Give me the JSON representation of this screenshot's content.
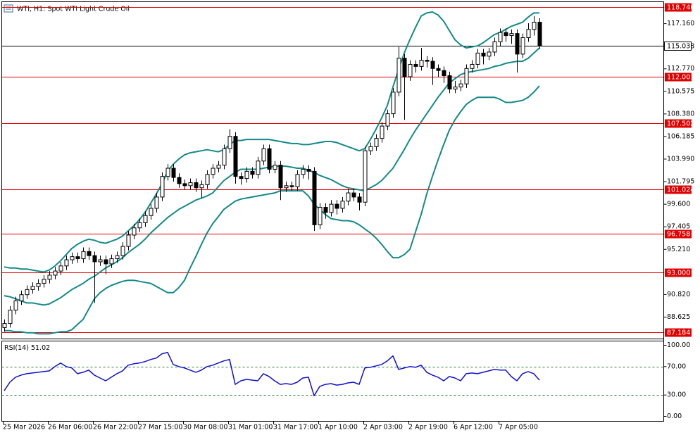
{
  "chart_data": [
    {
      "type": "candlestick",
      "title": "WTI, H1:  Spot WTI Light Crude Oil",
      "categories": [
        "25 Mar 2026",
        null,
        null,
        null,
        null,
        null,
        null,
        null,
        "26 Mar 06:00",
        null,
        null,
        null,
        null,
        null,
        null,
        null,
        "26 Mar 22:00",
        null,
        null,
        null,
        null,
        null,
        null,
        null,
        "27 Mar 15:00",
        null,
        null,
        null,
        null,
        null,
        null,
        null,
        "30 Mar 08:00",
        null,
        null,
        null,
        null,
        null,
        null,
        null,
        "31 Mar 01:00",
        null,
        null,
        null,
        null,
        null,
        null,
        null,
        "31 Mar 17:00",
        null,
        null,
        null,
        null,
        null,
        null,
        null,
        "1 Apr 10:00",
        null,
        null,
        null,
        null,
        null,
        null,
        null,
        "2 Apr 03:00",
        null,
        null,
        null,
        null,
        null,
        null,
        null,
        "2 Apr 19:00",
        null,
        null,
        null,
        null,
        null,
        null,
        null,
        "6 Apr 12:00",
        null,
        null,
        null,
        null,
        null,
        null,
        null,
        "7 Apr 05:00",
        null,
        null,
        null,
        null,
        null,
        null,
        null
      ],
      "open": [
        87.6,
        88.0,
        89.3,
        90.2,
        90.8,
        91.3,
        91.6,
        91.9,
        92.3,
        92.7,
        93.1,
        93.6,
        94.2,
        94.5,
        94.3,
        95.0,
        94.6,
        94.0,
        94.2,
        93.8,
        94.3,
        94.6,
        95.5,
        96.6,
        97.3,
        97.8,
        98.5,
        99.2,
        100.3,
        102.3,
        103.1,
        102.2,
        101.6,
        101.4,
        101.7,
        101.2,
        101.5,
        102.5,
        103.1,
        103.4,
        105.0,
        106.2,
        102.3,
        102.1,
        102.8,
        102.5,
        103.8,
        105.0,
        103.0,
        103.4,
        101.2,
        101.4,
        101.3,
        102.5,
        103.0,
        102.8,
        97.6,
        99.3,
        98.8,
        99.6,
        99.2,
        99.9,
        100.7,
        100.3,
        99.8,
        104.8,
        105.2,
        106.0,
        107.2,
        108.4,
        110.5,
        113.8,
        112.0,
        113.2,
        113.0,
        113.6,
        113.5,
        112.8,
        112.6,
        112.1,
        110.8,
        111.0,
        111.3,
        112.8,
        113.2,
        114.3,
        114.0,
        114.4,
        115.4,
        116.3,
        116.0,
        116.2,
        114.2,
        115.8,
        116.6,
        117.3
      ],
      "high": [
        88.4,
        89.7,
        90.6,
        91.2,
        91.7,
        92.0,
        92.3,
        92.7,
        93.1,
        93.5,
        94.0,
        94.6,
        94.9,
        94.9,
        95.4,
        95.4,
        95.0,
        94.6,
        94.6,
        94.7,
        95.0,
        95.9,
        97.0,
        97.7,
        98.2,
        98.9,
        99.6,
        100.7,
        102.7,
        103.5,
        103.5,
        102.6,
        102.0,
        102.1,
        102.1,
        101.9,
        102.9,
        103.5,
        103.8,
        105.4,
        106.9,
        106.6,
        102.7,
        103.2,
        103.2,
        104.2,
        105.4,
        105.4,
        103.8,
        103.8,
        101.8,
        101.8,
        102.9,
        103.4,
        103.4,
        103.2,
        99.7,
        99.7,
        100.0,
        100.0,
        100.3,
        101.1,
        101.1,
        100.7,
        105.2,
        105.6,
        106.4,
        107.6,
        108.8,
        110.9,
        114.9,
        114.2,
        113.6,
        113.6,
        114.8,
        114.0,
        113.9,
        113.2,
        113.0,
        112.5,
        111.6,
        111.7,
        113.2,
        113.6,
        114.7,
        114.7,
        114.8,
        115.8,
        116.7,
        116.7,
        116.6,
        116.6,
        116.2,
        117.2,
        117.9,
        117.7
      ],
      "low": [
        87.2,
        87.6,
        88.9,
        89.8,
        90.4,
        90.9,
        91.2,
        91.5,
        91.9,
        92.3,
        92.7,
        93.2,
        93.8,
        93.9,
        93.9,
        94.2,
        90.0,
        93.6,
        92.8,
        93.4,
        93.9,
        94.2,
        95.1,
        96.2,
        96.9,
        97.4,
        98.1,
        98.8,
        99.9,
        101.9,
        101.8,
        101.2,
        101.0,
        101.0,
        100.8,
        100.2,
        101.1,
        102.1,
        102.7,
        103.0,
        104.6,
        101.6,
        101.5,
        101.7,
        102.1,
        102.1,
        103.4,
        102.6,
        102.6,
        100.0,
        100.8,
        100.9,
        100.9,
        102.1,
        102.0,
        97.0,
        97.2,
        98.2,
        98.4,
        98.6,
        98.8,
        99.5,
        99.9,
        99.0,
        99.4,
        104.4,
        104.8,
        105.6,
        106.8,
        108.0,
        110.1,
        107.8,
        111.6,
        112.4,
        112.6,
        112.9,
        111.2,
        112.0,
        111.4,
        110.4,
        110.4,
        110.6,
        110.9,
        112.4,
        112.8,
        113.2,
        113.6,
        114.0,
        115.0,
        115.4,
        115.2,
        112.4,
        113.8,
        115.4,
        116.0,
        114.7
      ],
      "close": [
        88.0,
        89.3,
        90.2,
        90.8,
        91.3,
        91.6,
        91.9,
        92.3,
        92.7,
        93.1,
        93.6,
        94.2,
        94.5,
        94.3,
        95.0,
        94.6,
        94.0,
        94.2,
        93.8,
        94.3,
        94.6,
        95.5,
        96.6,
        97.3,
        97.8,
        98.5,
        99.2,
        100.3,
        102.3,
        103.1,
        102.2,
        101.6,
        101.4,
        101.7,
        101.2,
        101.5,
        102.5,
        103.1,
        103.4,
        105.0,
        106.2,
        102.3,
        102.1,
        102.8,
        102.5,
        103.8,
        105.0,
        103.0,
        103.4,
        101.2,
        101.4,
        101.3,
        102.5,
        103.0,
        102.8,
        97.6,
        99.3,
        98.8,
        99.6,
        99.2,
        99.9,
        100.7,
        100.3,
        99.8,
        104.8,
        105.2,
        106.0,
        107.2,
        108.4,
        110.5,
        113.8,
        112.0,
        113.2,
        113.0,
        113.6,
        113.5,
        112.8,
        112.6,
        112.1,
        110.8,
        111.0,
        111.3,
        112.8,
        113.2,
        114.3,
        114.0,
        114.4,
        115.4,
        116.3,
        116.0,
        116.2,
        114.2,
        115.8,
        116.6,
        117.3,
        115.038
      ],
      "candle_color": "#000000",
      "bands": {
        "color": "#138a8a",
        "upper": [
          93.5,
          93.4,
          93.4,
          93.3,
          93.3,
          93.2,
          93.1,
          93.0,
          93.2,
          93.6,
          94.1,
          94.7,
          95.3,
          95.7,
          96.0,
          96.2,
          96.1,
          95.9,
          95.8,
          96.0,
          96.2,
          96.5,
          97.0,
          97.5,
          98.1,
          98.8,
          99.7,
          100.6,
          101.6,
          102.8,
          103.5,
          104.0,
          104.4,
          104.6,
          104.7,
          104.8,
          104.9,
          104.8,
          104.7,
          104.9,
          105.4,
          105.8,
          105.8,
          105.9,
          105.9,
          105.9,
          105.9,
          105.9,
          105.8,
          105.7,
          105.6,
          105.5,
          105.5,
          105.4,
          105.4,
          105.5,
          105.6,
          105.7,
          105.7,
          105.6,
          105.4,
          105.2,
          105.0,
          104.8,
          105.0,
          105.9,
          106.9,
          108.0,
          109.2,
          111.0,
          112.7,
          114.3,
          115.6,
          116.8,
          117.9,
          118.2,
          118.3,
          118.0,
          117.4,
          116.5,
          115.6,
          115.1,
          114.8,
          114.9,
          115.0,
          115.3,
          115.7,
          116.1,
          116.3,
          116.6,
          116.9,
          117.1,
          117.3,
          117.8,
          118.2,
          118.2
        ],
        "middle": [
          90.7,
          90.6,
          90.4,
          90.2,
          90.0,
          90.0,
          89.9,
          89.8,
          89.9,
          90.2,
          90.5,
          90.9,
          91.3,
          91.6,
          91.9,
          92.3,
          92.6,
          93.0,
          93.4,
          93.7,
          94.0,
          94.4,
          94.9,
          95.3,
          95.7,
          96.2,
          96.8,
          97.3,
          97.8,
          98.3,
          98.7,
          99.1,
          99.4,
          99.7,
          100.0,
          100.2,
          100.4,
          100.7,
          101.3,
          101.9,
          102.3,
          102.7,
          103.0,
          103.0,
          103.0,
          103.0,
          103.1,
          103.2,
          103.3,
          103.3,
          103.3,
          103.2,
          103.1,
          103.1,
          102.9,
          102.7,
          102.4,
          102.2,
          102.0,
          101.7,
          101.4,
          101.2,
          101.1,
          101.0,
          100.9,
          101.2,
          101.5,
          101.9,
          102.5,
          103.1,
          104.0,
          104.9,
          105.9,
          106.8,
          107.6,
          108.4,
          109.2,
          110.0,
          110.7,
          111.4,
          111.8,
          112.2,
          112.4,
          112.5,
          112.6,
          112.7,
          112.8,
          113.0,
          113.1,
          113.3,
          113.4,
          113.5,
          113.5,
          113.8,
          114.3,
          114.8
        ],
        "lower": [
          87.3,
          87.3,
          87.2,
          87.2,
          87.1,
          87.1,
          87.0,
          87.0,
          87.0,
          87.1,
          87.2,
          87.2,
          87.4,
          87.9,
          88.4,
          89.4,
          90.4,
          91.0,
          91.4,
          91.7,
          91.9,
          92.1,
          92.2,
          92.2,
          92.1,
          92.0,
          91.9,
          91.6,
          91.3,
          91.0,
          91.0,
          91.5,
          92.2,
          93.4,
          94.5,
          95.7,
          96.8,
          97.7,
          98.4,
          99.1,
          99.5,
          99.9,
          100.1,
          100.2,
          100.3,
          100.4,
          100.5,
          100.6,
          100.7,
          100.9,
          100.9,
          100.9,
          100.9,
          100.9,
          100.4,
          99.6,
          99.1,
          98.6,
          98.2,
          98.1,
          98.0,
          98.0,
          97.9,
          97.6,
          97.2,
          96.8,
          96.3,
          95.7,
          95.0,
          94.4,
          94.4,
          94.7,
          95.2,
          96.9,
          98.6,
          100.6,
          102.3,
          103.9,
          105.4,
          106.8,
          107.8,
          108.6,
          109.3,
          109.7,
          110.0,
          110.0,
          110.0,
          110.0,
          109.8,
          109.5,
          109.5,
          109.6,
          109.7,
          110.0,
          110.5,
          111.1
        ]
      },
      "hlines": {
        "color": "#e00000",
        "values": [
          118.746,
          112.001,
          107.502,
          101.024,
          96.758,
          {
            "value": 93.0,
            "label": "93.000"
          },
          87.184
        ]
      },
      "last_price": 115.038,
      "ylim": [
        86.5,
        119.29
      ],
      "yticks": [
        {
          "value": 117.16,
          "label": "117.160"
        },
        {
          "value": 112.77,
          "label": "112.770"
        },
        110.575,
        {
          "value": 108.38,
          "label": "108.380"
        },
        106.185,
        {
          "value": 103.99,
          "label": "103.990"
        },
        101.795,
        {
          "value": 99.6,
          "label": "99.600"
        },
        97.405,
        {
          "value": 95.21,
          "label": "95.210"
        },
        {
          "value": 90.82,
          "label": "90.820"
        },
        88.625
      ],
      "grid": false
    },
    {
      "type": "line",
      "title": "RSI(14)",
      "values": [
        36,
        48,
        55,
        58,
        60,
        61,
        62,
        63,
        64,
        70,
        75,
        70,
        68,
        60,
        62,
        65,
        58,
        54,
        50,
        55,
        60,
        64,
        72,
        74,
        75,
        77,
        80,
        82,
        88,
        90,
        73,
        70,
        68,
        65,
        62,
        65,
        70,
        72,
        75,
        78,
        80,
        45,
        50,
        52,
        51,
        50,
        60,
        56,
        50,
        45,
        46,
        45,
        48,
        54,
        55,
        29,
        42,
        45,
        46,
        44,
        45,
        47,
        48,
        45,
        68,
        69,
        71,
        73,
        78,
        85,
        66,
        68,
        70,
        69,
        72,
        62,
        58,
        55,
        50,
        56,
        54,
        50,
        60,
        61,
        60,
        62,
        64,
        66,
        65,
        65,
        56,
        50,
        60,
        63,
        60,
        51.02
      ],
      "color": "#1010d0",
      "levels": [
        70,
        30
      ],
      "level_color": "#2e7d32",
      "ylim": [
        -6.93,
        105.94
      ],
      "yticks": [
        {
          "value": 100,
          "label": "100.00"
        },
        {
          "value": 70,
          "label": "70.00"
        },
        {
          "value": 30,
          "label": "30.00"
        },
        {
          "value": 0,
          "label": "0.00"
        }
      ]
    }
  ]
}
